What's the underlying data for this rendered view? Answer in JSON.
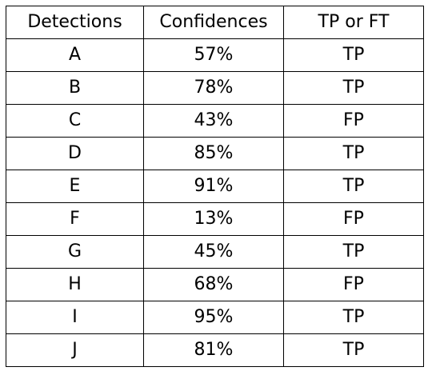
{
  "table": {
    "headers": [
      "Detections",
      "Confidences",
      "TP or FT"
    ],
    "rows": [
      {
        "detection": "A",
        "confidence": "57%",
        "label": "TP"
      },
      {
        "detection": "B",
        "confidence": "78%",
        "label": "TP"
      },
      {
        "detection": "C",
        "confidence": "43%",
        "label": "FP"
      },
      {
        "detection": "D",
        "confidence": "85%",
        "label": "TP"
      },
      {
        "detection": "E",
        "confidence": "91%",
        "label": "TP"
      },
      {
        "detection": "F",
        "confidence": "13%",
        "label": "FP"
      },
      {
        "detection": "G",
        "confidence": "45%",
        "label": "TP"
      },
      {
        "detection": "H",
        "confidence": "68%",
        "label": "FP"
      },
      {
        "detection": "I",
        "confidence": "95%",
        "label": "TP"
      },
      {
        "detection": "J",
        "confidence": "81%",
        "label": "TP"
      }
    ]
  }
}
